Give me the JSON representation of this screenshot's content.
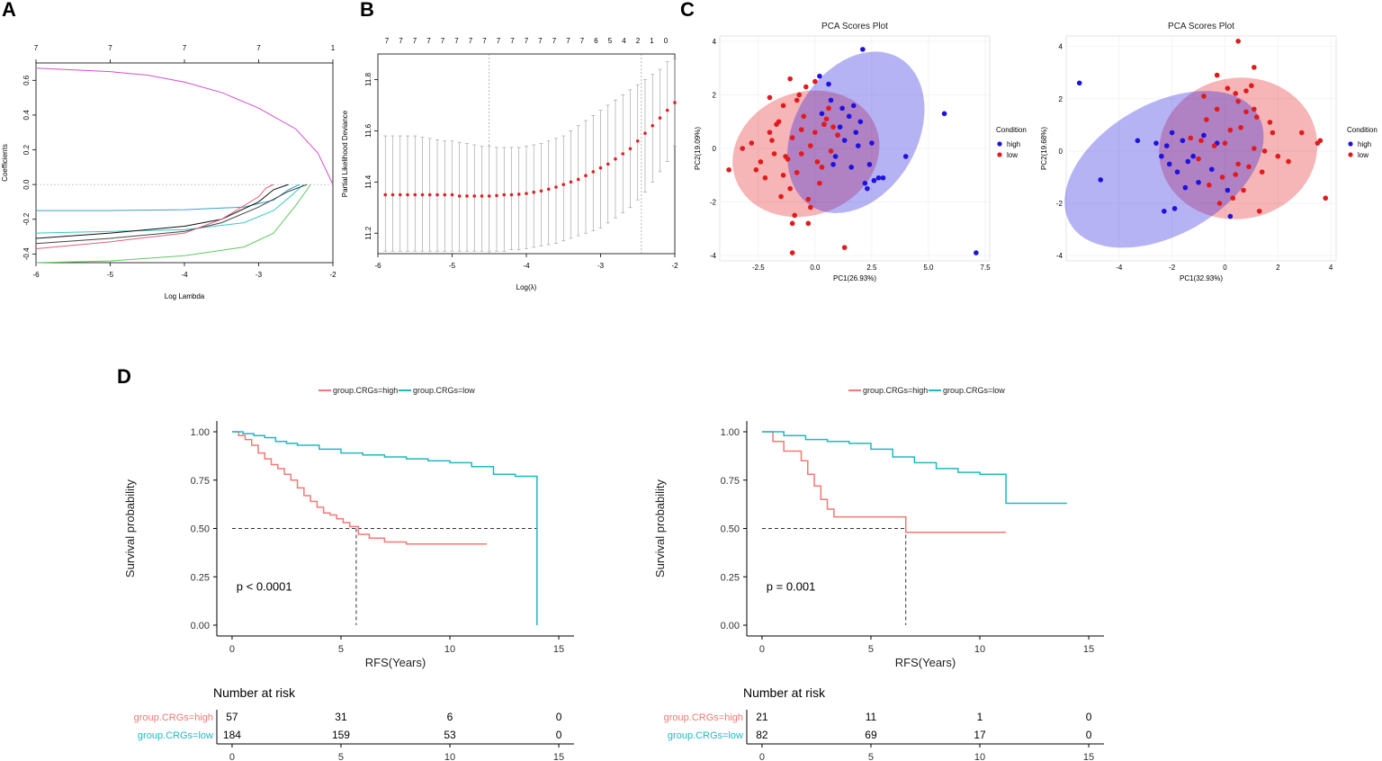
{
  "chart_data": [
    {
      "panel": "A",
      "type": "line",
      "xlabel": "Log Lambda",
      "ylabel": "Coefficients",
      "xlim": [
        -6,
        -2
      ],
      "ylim": [
        -0.45,
        0.7
      ],
      "x_ticks": [
        "-6",
        "-5",
        "-4",
        "-3",
        "-2"
      ],
      "y_ticks": [
        "-0.4",
        "-0.2",
        "0.0",
        "0.2",
        "0.4",
        "0.6"
      ],
      "top_ticks": [
        {
          "x": -6,
          "label": "7"
        },
        {
          "x": -5,
          "label": "7"
        },
        {
          "x": -4,
          "label": "7"
        },
        {
          "x": -3,
          "label": "7"
        },
        {
          "x": -2,
          "label": "1"
        }
      ],
      "series": [
        {
          "name": "magenta",
          "color": "#d34fd0",
          "x": [
            -6,
            -5,
            -4.5,
            -4,
            -3.5,
            -3,
            -2.5,
            -2.2,
            -2
          ],
          "y": [
            0.67,
            0.65,
            0.63,
            0.59,
            0.53,
            0.44,
            0.32,
            0.18,
            0.0
          ]
        },
        {
          "name": "blue",
          "color": "#3aa1c9",
          "x": [
            -6,
            -5,
            -4,
            -3.2,
            -2.8,
            -2.6,
            -2.45
          ],
          "y": [
            -0.15,
            -0.15,
            -0.145,
            -0.13,
            -0.09,
            -0.03,
            0.0
          ]
        },
        {
          "name": "cyan",
          "color": "#38c8c8",
          "x": [
            -6,
            -5,
            -4,
            -3.2,
            -2.8,
            -2.55,
            -2.4
          ],
          "y": [
            -0.28,
            -0.27,
            -0.26,
            -0.22,
            -0.15,
            -0.06,
            0.0
          ]
        },
        {
          "name": "black1",
          "color": "#111111",
          "x": [
            -6,
            -5,
            -4,
            -3.5,
            -3,
            -2.8,
            -2.6
          ],
          "y": [
            -0.31,
            -0.28,
            -0.24,
            -0.2,
            -0.1,
            -0.03,
            0.0
          ]
        },
        {
          "name": "black2",
          "color": "#444444",
          "x": [
            -6,
            -5,
            -4,
            -3.5,
            -3,
            -2.6,
            -2.35
          ],
          "y": [
            -0.34,
            -0.31,
            -0.27,
            -0.22,
            -0.13,
            -0.04,
            0.0
          ]
        },
        {
          "name": "red",
          "color": "#e0607a",
          "x": [
            -6,
            -5,
            -4,
            -3.5,
            -3,
            -2.9,
            -2.8
          ],
          "y": [
            -0.37,
            -0.33,
            -0.28,
            -0.2,
            -0.07,
            -0.02,
            0.0
          ]
        },
        {
          "name": "green",
          "color": "#5fc85f",
          "x": [
            -6,
            -5,
            -4,
            -3.2,
            -2.8,
            -2.5,
            -2.3
          ],
          "y": [
            -0.45,
            -0.44,
            -0.41,
            -0.36,
            -0.28,
            -0.12,
            0.0
          ]
        }
      ]
    },
    {
      "panel": "B",
      "type": "scatter",
      "xlabel": "Log(λ)",
      "ylabel": "Partial Likelihood Deviance",
      "xlim": [
        -6,
        -2
      ],
      "ylim": [
        11.12,
        11.9
      ],
      "x_ticks": [
        "-6",
        "-5",
        "-4",
        "-3",
        "-2"
      ],
      "y_ticks": [
        "11.2",
        "11.4",
        "11.6",
        "11.8"
      ],
      "top_labels": [
        "7",
        "7",
        "7",
        "7",
        "7",
        "7",
        "7",
        "7",
        "7",
        "7",
        "7",
        "7",
        "7",
        "7",
        "7",
        "6",
        "5",
        "4",
        "2",
        "1",
        "0"
      ],
      "vlines": [
        -4.5,
        -2.45
      ],
      "points": {
        "x": [
          -5.9,
          -5.8,
          -5.7,
          -5.6,
          -5.5,
          -5.4,
          -5.3,
          -5.2,
          -5.1,
          -5.0,
          -4.9,
          -4.8,
          -4.7,
          -4.6,
          -4.5,
          -4.4,
          -4.3,
          -4.2,
          -4.1,
          -4.0,
          -3.9,
          -3.8,
          -3.7,
          -3.6,
          -3.5,
          -3.4,
          -3.3,
          -3.2,
          -3.1,
          -3.0,
          -2.9,
          -2.8,
          -2.7,
          -2.6,
          -2.5,
          -2.4,
          -2.3,
          -2.2,
          -2.1,
          -2.0
        ],
        "y": [
          11.35,
          11.35,
          11.35,
          11.35,
          11.35,
          11.35,
          11.35,
          11.35,
          11.35,
          11.35,
          11.345,
          11.345,
          11.345,
          11.345,
          11.345,
          11.347,
          11.35,
          11.35,
          11.352,
          11.355,
          11.36,
          11.365,
          11.372,
          11.38,
          11.39,
          11.4,
          11.41,
          11.425,
          11.44,
          11.455,
          11.47,
          11.49,
          11.51,
          11.53,
          11.56,
          11.59,
          11.62,
          11.65,
          11.68,
          11.71
        ],
        "err_lo": [
          11.13,
          11.13,
          11.13,
          11.13,
          11.13,
          11.13,
          11.13,
          11.13,
          11.13,
          11.13,
          11.13,
          11.13,
          11.13,
          11.13,
          11.13,
          11.13,
          11.13,
          11.135,
          11.135,
          11.14,
          11.145,
          11.15,
          11.155,
          11.16,
          11.17,
          11.18,
          11.19,
          11.2,
          11.21,
          11.22,
          11.24,
          11.26,
          11.28,
          11.3,
          11.33,
          11.36,
          11.4,
          11.44,
          11.48,
          11.54
        ],
        "err_hi": [
          11.58,
          11.58,
          11.58,
          11.58,
          11.58,
          11.575,
          11.57,
          11.565,
          11.56,
          11.56,
          11.555,
          11.55,
          11.545,
          11.54,
          11.54,
          11.535,
          11.535,
          11.535,
          11.535,
          11.54,
          11.545,
          11.55,
          11.56,
          11.57,
          11.58,
          11.6,
          11.62,
          11.64,
          11.66,
          11.68,
          11.7,
          11.72,
          11.74,
          11.76,
          11.78,
          11.8,
          11.82,
          11.84,
          11.87,
          11.88
        ]
      }
    },
    {
      "panel": "C",
      "type": "scatter",
      "title": "PCA Scores Plot",
      "xlabel": "PC1(26.93%)",
      "ylabel": "PC2(19.09%)",
      "xlim": [
        -4.2,
        7.7
      ],
      "ylim": [
        -4.2,
        4.2
      ],
      "x_ticks": [
        "-2.5",
        "0.0",
        "2.5",
        "5.0",
        "7.5"
      ],
      "y_ticks": [
        "-4",
        "-2",
        "0",
        "2",
        "4"
      ],
      "legend_title": "Condition",
      "legend": [
        "high",
        "low"
      ],
      "high": {
        "x": [
          2.1,
          0.2,
          0.6,
          1.2,
          1.5,
          2.0,
          1.8,
          1.0,
          0.4,
          2.5,
          3.0,
          2.8,
          1.6,
          0.9,
          1.3,
          2.2,
          0.7,
          1.9,
          2.4,
          5.7,
          7.1,
          4.0,
          2.3,
          1.1,
          1.7,
          0.3,
          0.8,
          2.6
        ],
        "y": [
          3.7,
          2.7,
          2.4,
          1.5,
          1.2,
          1.0,
          0.6,
          0.5,
          0.9,
          0.2,
          -1.1,
          -1.1,
          -0.7,
          -0.3,
          0.3,
          -1.3,
          1.8,
          0.1,
          -0.6,
          1.3,
          -3.9,
          -0.3,
          -1.5,
          0.8,
          1.6,
          1.3,
          -0.6,
          -1.2
        ]
      },
      "low": {
        "x": [
          -2.8,
          -2.4,
          -2.0,
          -1.6,
          -1.3,
          -1.0,
          -0.8,
          -0.5,
          -0.2,
          0.1,
          0.4,
          0.7,
          1.0,
          -2.2,
          -1.8,
          -1.4,
          -1.1,
          -0.7,
          -0.3,
          0.0,
          0.3,
          0.6,
          -2.6,
          -2.0,
          -1.5,
          -0.9,
          -0.4,
          0.2,
          0.8,
          -1.2,
          -0.6,
          -1.9,
          -1.0,
          -0.2,
          0.5,
          -1.7,
          -0.8,
          -3.8,
          -3.2,
          -1.0,
          1.3,
          -0.3,
          -1.1,
          -1.4,
          0.0,
          -0.6
        ],
        "y": [
          0.2,
          -0.5,
          0.6,
          1.0,
          -0.3,
          0.4,
          -0.9,
          1.2,
          0.1,
          -0.5,
          0.9,
          -0.1,
          0.5,
          -1.1,
          -0.2,
          1.6,
          -1.5,
          2.0,
          -1.9,
          2.5,
          -0.7,
          1.5,
          -0.8,
          1.9,
          -1.8,
          -2.5,
          2.3,
          -1.3,
          0.8,
          -0.4,
          0.7,
          0.3,
          -2.8,
          -2.2,
          1.1,
          0.9,
          1.8,
          -0.8,
          0.0,
          -3.9,
          -3.7,
          -2.8,
          2.6,
          -1.0,
          0.6,
          -0.2
        ]
      },
      "ellipse_high": {
        "cx": 1.8,
        "cy": 0.6,
        "rx": 3.8,
        "ry": 2.3,
        "angle": -60
      },
      "ellipse_low": {
        "cx": -0.4,
        "cy": -0.2,
        "rx": 3.3,
        "ry": 2.3,
        "angle": -20
      }
    },
    {
      "panel": "C2",
      "type": "scatter",
      "title": "PCA Scores Plot",
      "xlabel": "PC1(32.93%)",
      "ylabel": "PC2(19.68%)",
      "xlim": [
        -6.0,
        4.2
      ],
      "ylim": [
        -4.2,
        4.4
      ],
      "x_ticks": [
        "-4",
        "-2",
        "0",
        "2",
        "4"
      ],
      "y_ticks": [
        "-4",
        "-2",
        "0",
        "2",
        "4"
      ],
      "legend_title": "Condition",
      "legend": [
        "high",
        "low"
      ],
      "high": {
        "x": [
          -5.5,
          -4.7,
          -3.3,
          -2.6,
          -2.3,
          -2.1,
          -2.0,
          -1.8,
          -1.5,
          -1.2,
          -0.8,
          -0.5,
          -2.4,
          -1.9,
          -1.6,
          0.2,
          -1.0,
          -2.2,
          -0.3,
          0.1,
          -1.4
        ],
        "y": [
          2.6,
          -1.1,
          0.4,
          0.3,
          -2.3,
          -0.5,
          0.7,
          -0.8,
          -1.4,
          -0.2,
          0.6,
          -0.7,
          -0.2,
          -2.2,
          0.4,
          -2.5,
          -1.2,
          0.2,
          0.3,
          -1.5,
          -0.4
        ]
      },
      "low": {
        "x": [
          -1.3,
          -1.0,
          -0.7,
          -0.4,
          -0.1,
          0.2,
          0.5,
          0.8,
          1.1,
          1.4,
          1.7,
          2.0,
          -0.9,
          -0.6,
          -0.3,
          0.0,
          0.3,
          0.6,
          0.9,
          1.2,
          1.5,
          1.8,
          0.4,
          1.0,
          -0.2,
          0.7,
          1.3,
          -0.8,
          0.1,
          0.5,
          0.8,
          1.1,
          3.5,
          3.6,
          2.9,
          3.8,
          2.4,
          0.5,
          1.1,
          -0.3,
          0.4
        ],
        "y": [
          0.5,
          -0.3,
          1.2,
          0.2,
          -1.0,
          0.8,
          -0.5,
          1.5,
          0.1,
          -0.8,
          1.1,
          -0.2,
          0.4,
          -1.3,
          1.6,
          0.3,
          -1.8,
          0.9,
          -0.6,
          1.3,
          0.0,
          0.7,
          2.2,
          2.5,
          -2.0,
          -1.5,
          -2.3,
          2.1,
          2.4,
          1.9,
          2.3,
          1.6,
          0.3,
          0.4,
          0.7,
          -1.8,
          -0.4,
          4.2,
          3.2,
          2.9,
          -0.9
        ]
      },
      "ellipse_high": {
        "cx": -2.3,
        "cy": -0.7,
        "rx": 4.1,
        "ry": 2.5,
        "angle": -30
      },
      "ellipse_low": {
        "cx": 0.5,
        "cy": 0.1,
        "rx": 3.0,
        "ry": 2.7,
        "angle": -10
      }
    },
    {
      "panel": "D",
      "type": "line",
      "subtype": "kaplan-meier",
      "xlabel": "RFS(Years)",
      "ylabel": "Survival probability",
      "xlim": [
        -0.7,
        15.7
      ],
      "ylim": [
        0,
        1
      ],
      "x_ticks": [
        "0",
        "5",
        "10",
        "15"
      ],
      "y_ticks": [
        "0.00",
        "0.25",
        "0.50",
        "0.75",
        "1.00"
      ],
      "legend": [
        "group.CRGs=high",
        "group.CRGs=low"
      ],
      "p_value": "p < 0.0001",
      "median_x": 5.7,
      "high": {
        "x": [
          0,
          0.3,
          0.6,
          0.9,
          1.2,
          1.5,
          1.8,
          2.1,
          2.4,
          2.7,
          3.0,
          3.3,
          3.6,
          3.9,
          4.2,
          4.5,
          4.8,
          5.1,
          5.4,
          5.8,
          6.3,
          7.0,
          8.0,
          10.0,
          11.7
        ],
        "y": [
          1.0,
          0.98,
          0.96,
          0.93,
          0.89,
          0.86,
          0.83,
          0.81,
          0.78,
          0.75,
          0.71,
          0.67,
          0.64,
          0.61,
          0.58,
          0.57,
          0.55,
          0.53,
          0.51,
          0.47,
          0.45,
          0.43,
          0.42,
          0.42,
          0.42
        ]
      },
      "low": {
        "x": [
          0,
          0.5,
          1.0,
          1.5,
          2.0,
          2.5,
          3.0,
          4.0,
          5.0,
          6.0,
          7.0,
          8.0,
          9.0,
          10.0,
          11.0,
          12.0,
          13.0,
          14.0,
          14.0
        ],
        "y": [
          1.0,
          0.99,
          0.98,
          0.97,
          0.95,
          0.94,
          0.93,
          0.91,
          0.89,
          0.88,
          0.87,
          0.86,
          0.85,
          0.84,
          0.82,
          0.78,
          0.77,
          0.77,
          0.0
        ]
      },
      "risk_title": "Number at risk",
      "risk_times": [
        "0",
        "5",
        "10",
        "15"
      ],
      "risk_high": [
        "57",
        "31",
        "6",
        "0"
      ],
      "risk_low": [
        "184",
        "159",
        "53",
        "0"
      ]
    },
    {
      "panel": "D2",
      "type": "line",
      "subtype": "kaplan-meier",
      "xlabel": "RFS(Years)",
      "ylabel": "Survival probability",
      "xlim": [
        -0.7,
        15.7
      ],
      "ylim": [
        0,
        1
      ],
      "x_ticks": [
        "0",
        "5",
        "10",
        "15"
      ],
      "y_ticks": [
        "0.00",
        "0.25",
        "0.50",
        "0.75",
        "1.00"
      ],
      "legend": [
        "group.CRGs=high",
        "group.CRGs=low"
      ],
      "p_value": "p = 0.001",
      "median_x": 6.6,
      "high": {
        "x": [
          0,
          0.5,
          1.0,
          1.8,
          2.1,
          2.4,
          2.7,
          3.0,
          3.3,
          6.6,
          11.2
        ],
        "y": [
          1.0,
          0.95,
          0.9,
          0.85,
          0.78,
          0.72,
          0.65,
          0.6,
          0.56,
          0.48,
          0.48
        ]
      },
      "low": {
        "x": [
          0,
          1.0,
          2.0,
          3.0,
          4.0,
          5.0,
          6.0,
          7.0,
          8.0,
          9.0,
          10.0,
          11.2,
          11.2,
          14.0
        ],
        "y": [
          1.0,
          0.98,
          0.96,
          0.95,
          0.94,
          0.91,
          0.87,
          0.84,
          0.81,
          0.79,
          0.78,
          0.78,
          0.63,
          0.63
        ]
      },
      "risk_title": "Number at risk",
      "risk_times": [
        "0",
        "5",
        "10",
        "15"
      ],
      "risk_high": [
        "21",
        "11",
        "1",
        "0"
      ],
      "risk_low": [
        "82",
        "69",
        "17",
        "0"
      ]
    }
  ],
  "labels": {
    "panel_A": "A",
    "panel_B": "B",
    "panel_C": "C",
    "panel_D": "D"
  },
  "colors": {
    "high_km": "#f07a75",
    "low_km": "#20b8c0",
    "pca_high": "#1d12e0",
    "pca_low": "#e31a1c",
    "cv_point": "#e02222"
  }
}
